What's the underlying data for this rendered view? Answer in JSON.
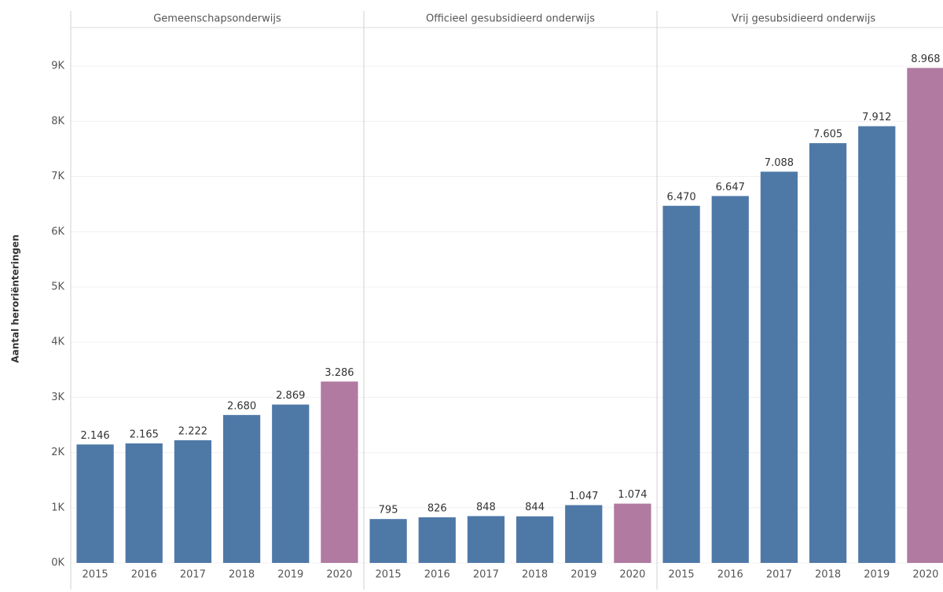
{
  "chart_data": {
    "type": "bar",
    "ylabel": "Aantal heroriënteringen",
    "ylim": [
      0,
      9700
    ],
    "yticks": [
      {
        "value": 0,
        "label": "0K"
      },
      {
        "value": 1000,
        "label": "1K"
      },
      {
        "value": 2000,
        "label": "2K"
      },
      {
        "value": 3000,
        "label": "3K"
      },
      {
        "value": 4000,
        "label": "4K"
      },
      {
        "value": 5000,
        "label": "5K"
      },
      {
        "value": 6000,
        "label": "6K"
      },
      {
        "value": 7000,
        "label": "7K"
      },
      {
        "value": 8000,
        "label": "8K"
      },
      {
        "value": 9000,
        "label": "9K"
      }
    ],
    "grid": true,
    "panels": [
      {
        "title": "Gemeenschapsonderwijs",
        "categories": [
          "2015",
          "2016",
          "2017",
          "2018",
          "2019",
          "2020"
        ],
        "values": [
          2146,
          2165,
          2222,
          2680,
          2869,
          3286
        ],
        "value_labels": [
          "2.146",
          "2.165",
          "2.222",
          "2.680",
          "2.869",
          "3.286"
        ],
        "colors": [
          "#4e79a7",
          "#4e79a7",
          "#4e79a7",
          "#4e79a7",
          "#4e79a7",
          "#b07aa1"
        ]
      },
      {
        "title": "Officieel gesubsidieerd onderwijs",
        "categories": [
          "2015",
          "2016",
          "2017",
          "2018",
          "2019",
          "2020"
        ],
        "values": [
          795,
          826,
          848,
          844,
          1047,
          1074
        ],
        "value_labels": [
          "795",
          "826",
          "848",
          "844",
          "1.047",
          "1.074"
        ],
        "colors": [
          "#4e79a7",
          "#4e79a7",
          "#4e79a7",
          "#4e79a7",
          "#4e79a7",
          "#b07aa1"
        ]
      },
      {
        "title": "Vrij gesubsidieerd onderwijs",
        "categories": [
          "2015",
          "2016",
          "2017",
          "2018",
          "2019",
          "2020"
        ],
        "values": [
          6470,
          6647,
          7088,
          7605,
          7912,
          8968
        ],
        "value_labels": [
          "6.470",
          "6.647",
          "7.088",
          "7.605",
          "7.912",
          "8.968"
        ],
        "colors": [
          "#4e79a7",
          "#4e79a7",
          "#4e79a7",
          "#4e79a7",
          "#4e79a7",
          "#b07aa1"
        ]
      }
    ]
  }
}
